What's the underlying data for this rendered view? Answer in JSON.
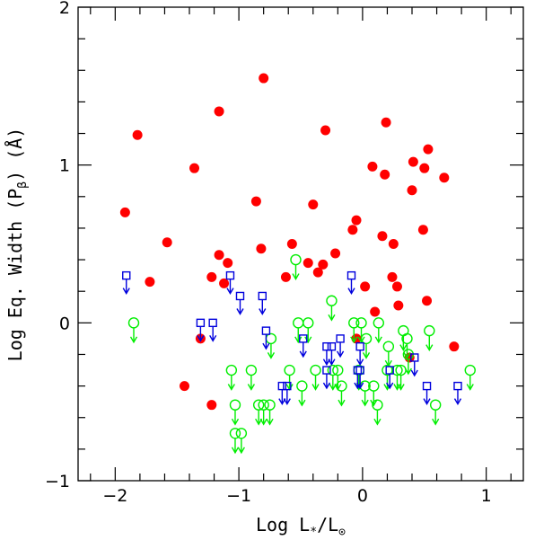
{
  "chart_data": {
    "type": "scatter",
    "title": "",
    "xlabel": {
      "main": "Log L",
      "sub1": "*",
      "mid": "/L",
      "sub2": "⊙"
    },
    "ylabel": {
      "main": "Log  Eq. Width (P",
      "sub": "β",
      "tail": ")  (Å)"
    },
    "xlim": [
      -2.3,
      1.3
    ],
    "ylim": [
      -1,
      2
    ],
    "xticks": [
      -2,
      -1,
      0,
      1
    ],
    "xtick_labels": [
      "−2",
      "−1",
      "0",
      "1"
    ],
    "yticks": [
      -1,
      0,
      1,
      2
    ],
    "ytick_labels": [
      "−1",
      "0",
      "1",
      "2"
    ],
    "grid": false,
    "colors": {
      "detections": "#ff0000",
      "open_circle_limits": "#00ee00",
      "open_square_limits": "#0000dd",
      "axes": "#000000"
    },
    "series": [
      {
        "marker": "filled-circle",
        "points": [
          [
            -1.92,
            0.7
          ],
          [
            -1.82,
            1.19
          ],
          [
            -1.72,
            0.26
          ],
          [
            -1.58,
            0.51
          ],
          [
            -1.44,
            -0.4
          ],
          [
            -1.36,
            0.98
          ],
          [
            -1.31,
            -0.1
          ],
          [
            -1.22,
            0.29
          ],
          [
            -1.22,
            -0.52
          ],
          [
            -1.16,
            1.34
          ],
          [
            -1.16,
            0.43
          ],
          [
            -1.12,
            0.25
          ],
          [
            -1.09,
            0.38
          ],
          [
            -0.86,
            0.77
          ],
          [
            -0.82,
            0.47
          ],
          [
            -0.8,
            1.55
          ],
          [
            -0.62,
            0.29
          ],
          [
            -0.57,
            0.5
          ],
          [
            -0.44,
            0.38
          ],
          [
            -0.4,
            0.75
          ],
          [
            -0.36,
            0.32
          ],
          [
            -0.32,
            0.37
          ],
          [
            -0.3,
            1.22
          ],
          [
            -0.22,
            0.44
          ],
          [
            -0.08,
            0.59
          ],
          [
            -0.05,
            0.65
          ],
          [
            -0.05,
            -0.1
          ],
          [
            0.02,
            0.23
          ],
          [
            0.08,
            0.99
          ],
          [
            0.1,
            0.07
          ],
          [
            0.16,
            0.55
          ],
          [
            0.18,
            0.94
          ],
          [
            0.19,
            1.27
          ],
          [
            0.24,
            0.29
          ],
          [
            0.25,
            0.5
          ],
          [
            0.28,
            0.23
          ],
          [
            0.29,
            0.11
          ],
          [
            0.38,
            -0.22
          ],
          [
            0.4,
            0.84
          ],
          [
            0.41,
            1.02
          ],
          [
            0.49,
            0.59
          ],
          [
            0.5,
            0.98
          ],
          [
            0.52,
            0.14
          ],
          [
            0.53,
            1.1
          ],
          [
            0.66,
            0.92
          ],
          [
            0.74,
            -0.15
          ]
        ]
      },
      {
        "marker": "open-circle-upper-limit",
        "points": [
          [
            -1.85,
            0.0
          ],
          [
            -1.06,
            -0.3
          ],
          [
            -1.03,
            -0.52
          ],
          [
            -1.03,
            -0.7
          ],
          [
            -0.98,
            -0.7
          ],
          [
            -0.9,
            -0.3
          ],
          [
            -0.84,
            -0.52
          ],
          [
            -0.8,
            -0.52
          ],
          [
            -0.75,
            -0.52
          ],
          [
            -0.74,
            -0.1
          ],
          [
            -0.59,
            -0.3
          ],
          [
            -0.54,
            0.4
          ],
          [
            -0.52,
            0.0
          ],
          [
            -0.49,
            -0.4
          ],
          [
            -0.44,
            0.0
          ],
          [
            -0.38,
            -0.3
          ],
          [
            -0.24,
            -0.3
          ],
          [
            -0.25,
            0.14
          ],
          [
            -0.2,
            -0.3
          ],
          [
            -0.17,
            -0.4
          ],
          [
            -0.07,
            0.0
          ],
          [
            -0.03,
            -0.3
          ],
          [
            -0.01,
            0.0
          ],
          [
            0.02,
            -0.4
          ],
          [
            0.03,
            -0.1
          ],
          [
            0.09,
            -0.4
          ],
          [
            0.12,
            -0.52
          ],
          [
            0.13,
            0.0
          ],
          [
            0.2,
            -0.3
          ],
          [
            0.21,
            -0.15
          ],
          [
            0.28,
            -0.3
          ],
          [
            0.31,
            -0.3
          ],
          [
            0.33,
            -0.05
          ],
          [
            0.36,
            -0.1
          ],
          [
            0.37,
            -0.2
          ],
          [
            0.54,
            -0.05
          ],
          [
            0.59,
            -0.52
          ],
          [
            0.87,
            -0.3
          ]
        ]
      },
      {
        "marker": "open-square-upper-limit",
        "points": [
          [
            -1.91,
            0.3
          ],
          [
            -1.31,
            0.0
          ],
          [
            -1.21,
            0.0
          ],
          [
            -1.07,
            0.3
          ],
          [
            -0.99,
            0.17
          ],
          [
            -0.81,
            0.17
          ],
          [
            -0.78,
            -0.05
          ],
          [
            -0.65,
            -0.4
          ],
          [
            -0.61,
            -0.4
          ],
          [
            -0.48,
            -0.1
          ],
          [
            -0.29,
            -0.15
          ],
          [
            -0.29,
            -0.3
          ],
          [
            -0.25,
            -0.15
          ],
          [
            -0.18,
            -0.1
          ],
          [
            -0.09,
            0.3
          ],
          [
            -0.04,
            -0.3
          ],
          [
            -0.02,
            -0.3
          ],
          [
            -0.02,
            -0.15
          ],
          [
            0.22,
            -0.3
          ],
          [
            0.42,
            -0.22
          ],
          [
            0.52,
            -0.4
          ],
          [
            0.77,
            -0.4
          ]
        ]
      }
    ]
  }
}
